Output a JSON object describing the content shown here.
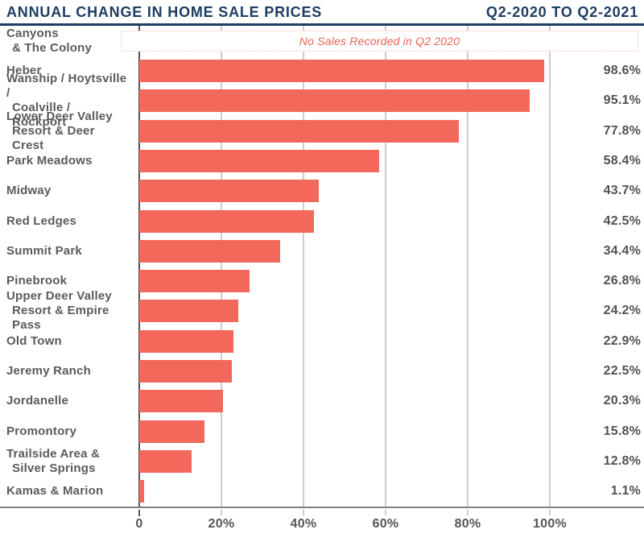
{
  "header": {
    "title": "ANNUAL CHANGE IN HOME SALE PRICES",
    "period": "Q2-2020 TO Q2-2021"
  },
  "colors": {
    "navy": "#1d3d62",
    "bar": "#f2695c",
    "label_gray": "#5a5b5e",
    "note_text": "#ee6351",
    "note_border": "#f6c3ba",
    "gridline": "#cdcdcd",
    "axis_line": "#7f8083"
  },
  "chart_data": {
    "type": "bar",
    "orientation": "horizontal",
    "title": "ANNUAL CHANGE IN HOME SALE PRICES",
    "subtitle": "Q2-2020 TO Q2-2021",
    "unit": "percent annual change",
    "xlim": [
      0,
      122
    ],
    "grid": "vertical",
    "legend": "none",
    "x_ticks": [
      {
        "value": 0,
        "label": "0"
      },
      {
        "value": 20,
        "label": "20%"
      },
      {
        "value": 40,
        "label": "40%"
      },
      {
        "value": 60,
        "label": "60%"
      },
      {
        "value": 80,
        "label": "80%"
      },
      {
        "value": 100,
        "label": "100%"
      }
    ],
    "no_sales_note": "No Sales Recorded in Q2 2020",
    "rows": [
      {
        "label": "Canyons & The Colony",
        "label_lines": [
          "Canyons",
          "& The Colony"
        ],
        "value": null,
        "display": null,
        "note": true
      },
      {
        "label": "Heber",
        "label_lines": [
          "Heber"
        ],
        "value": 98.6,
        "display": "98.6%"
      },
      {
        "label": "Wanship / Hoytsville / Coalville / Rockport",
        "label_lines": [
          "Wanship / Hoytsville /",
          "Coalville / Rockport"
        ],
        "value": 95.1,
        "display": "95.1%"
      },
      {
        "label": "Lower Deer Valley Resort & Deer Crest",
        "label_lines": [
          "Lower Deer Valley",
          "Resort & Deer Crest"
        ],
        "value": 77.8,
        "display": "77.8%"
      },
      {
        "label": "Park Meadows",
        "label_lines": [
          "Park Meadows"
        ],
        "value": 58.4,
        "display": "58.4%"
      },
      {
        "label": "Midway",
        "label_lines": [
          "Midway"
        ],
        "value": 43.7,
        "display": "43.7%"
      },
      {
        "label": "Red Ledges",
        "label_lines": [
          "Red Ledges"
        ],
        "value": 42.5,
        "display": "42.5%"
      },
      {
        "label": "Summit Park",
        "label_lines": [
          "Summit Park"
        ],
        "value": 34.4,
        "display": "34.4%"
      },
      {
        "label": "Pinebrook",
        "label_lines": [
          "Pinebrook"
        ],
        "value": 26.8,
        "display": "26.8%"
      },
      {
        "label": "Upper Deer Valley Resort & Empire Pass",
        "label_lines": [
          "Upper Deer Valley",
          "Resort & Empire Pass"
        ],
        "value": 24.2,
        "display": "24.2%"
      },
      {
        "label": "Old Town",
        "label_lines": [
          "Old Town"
        ],
        "value": 22.9,
        "display": "22.9%"
      },
      {
        "label": "Jeremy Ranch",
        "label_lines": [
          "Jeremy Ranch"
        ],
        "value": 22.5,
        "display": "22.5%"
      },
      {
        "label": "Jordanelle",
        "label_lines": [
          "Jordanelle"
        ],
        "value": 20.3,
        "display": "20.3%"
      },
      {
        "label": "Promontory",
        "label_lines": [
          "Promontory"
        ],
        "value": 15.8,
        "display": "15.8%"
      },
      {
        "label": "Trailside Area & Silver Springs",
        "label_lines": [
          "Trailside Area &",
          "Silver Springs"
        ],
        "value": 12.8,
        "display": "12.8%"
      },
      {
        "label": "Kamas & Marion",
        "label_lines": [
          "Kamas & Marion"
        ],
        "value": 1.1,
        "display": "1.1%"
      }
    ]
  }
}
